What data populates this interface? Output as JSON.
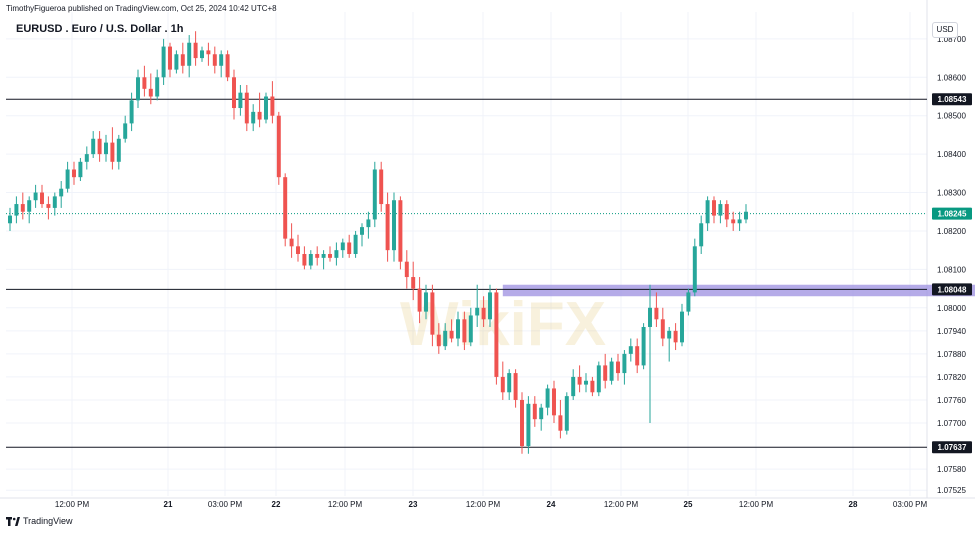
{
  "header": {
    "published_by": "TimothyFigueroa published on TradingView.com, Oct 25, 2024 10:42 UTC+8",
    "title": "EURUSD . Euro / U.S. Dollar . 1h",
    "currency": "USD"
  },
  "footer": {
    "brand": "TradingView"
  },
  "watermark": {
    "text": "WikiFX"
  },
  "colors": {
    "up": "#26a69a",
    "down": "#ef5350",
    "grid": "#f0f3fa",
    "zone": "#9c8fe0",
    "current": "#089981"
  },
  "chart_data": {
    "type": "candlestick",
    "title": "EURUSD . Euro / U.S. Dollar . 1h",
    "ylim": [
      1.0751,
      1.0877
    ],
    "y_ticks": [
      "1.08700",
      "1.08600",
      "1.08500",
      "1.08400",
      "1.08300",
      "1.08200",
      "1.08100",
      "1.08000",
      "1.07940",
      "1.07880",
      "1.07820",
      "1.07760",
      "1.07700",
      "1.07580",
      "1.07525"
    ],
    "x_ticks": [
      "12:00 PM",
      "21",
      "03:00 PM",
      "22",
      "12:00 PM",
      "23",
      "12:00 PM",
      "24",
      "12:00 PM",
      "25",
      "12:00 PM",
      "28",
      "03:00 PM"
    ],
    "x_ticks_bold": [
      "21",
      "22",
      "23",
      "24",
      "25",
      "28"
    ],
    "horizontal_levels": [
      {
        "label": "1.08543",
        "value": 1.08543
      },
      {
        "label": "1.08048",
        "value": 1.08048
      },
      {
        "label": "1.07637",
        "value": 1.07637
      }
    ],
    "current_price": {
      "label": "1.08245",
      "value": 1.08245
    },
    "zone": {
      "low": 1.0803,
      "high": 1.0806,
      "from_index": 77,
      "to_index": 150
    },
    "candles": [
      [
        1.0822,
        1.0826,
        1.082,
        1.0824
      ],
      [
        1.0824,
        1.0829,
        1.0822,
        1.0827
      ],
      [
        1.0827,
        1.083,
        1.0823,
        1.0825
      ],
      [
        1.0825,
        1.0829,
        1.0822,
        1.0828
      ],
      [
        1.0828,
        1.0832,
        1.0826,
        1.083
      ],
      [
        1.083,
        1.0832,
        1.0826,
        1.0827
      ],
      [
        1.0827,
        1.0829,
        1.0823,
        1.0826
      ],
      [
        1.0826,
        1.083,
        1.0824,
        1.0829
      ],
      [
        1.0829,
        1.0833,
        1.0826,
        1.0831
      ],
      [
        1.0831,
        1.0838,
        1.083,
        1.0836
      ],
      [
        1.0836,
        1.0838,
        1.0832,
        1.0834
      ],
      [
        1.0834,
        1.0839,
        1.0833,
        1.0838
      ],
      [
        1.0838,
        1.0842,
        1.0836,
        1.084
      ],
      [
        1.084,
        1.0846,
        1.0839,
        1.0844
      ],
      [
        1.0844,
        1.0846,
        1.0838,
        1.084
      ],
      [
        1.084,
        1.0845,
        1.0838,
        1.0843
      ],
      [
        1.0843,
        1.0847,
        1.0836,
        1.0838
      ],
      [
        1.0838,
        1.0845,
        1.0836,
        1.0844
      ],
      [
        1.0844,
        1.085,
        1.0843,
        1.0848
      ],
      [
        1.0848,
        1.0856,
        1.0846,
        1.0854
      ],
      [
        1.0854,
        1.0862,
        1.0852,
        1.086
      ],
      [
        1.086,
        1.0863,
        1.0855,
        1.0857
      ],
      [
        1.0857,
        1.0861,
        1.0853,
        1.0855
      ],
      [
        1.0855,
        1.0862,
        1.0854,
        1.086
      ],
      [
        1.086,
        1.087,
        1.0858,
        1.0868
      ],
      [
        1.0868,
        1.0869,
        1.086,
        1.0862
      ],
      [
        1.0862,
        1.0867,
        1.0861,
        1.0866
      ],
      [
        1.0866,
        1.0869,
        1.0861,
        1.0863
      ],
      [
        1.0863,
        1.0871,
        1.086,
        1.0869
      ],
      [
        1.0869,
        1.0872,
        1.0863,
        1.0865
      ],
      [
        1.0865,
        1.0868,
        1.0864,
        1.0867
      ],
      [
        1.0867,
        1.0869,
        1.0863,
        1.0866
      ],
      [
        1.0866,
        1.0868,
        1.0861,
        1.0863
      ],
      [
        1.0863,
        1.0867,
        1.086,
        1.0866
      ],
      [
        1.0866,
        1.0867,
        1.0859,
        1.086
      ],
      [
        1.086,
        1.0862,
        1.0849,
        1.0852
      ],
      [
        1.0852,
        1.0858,
        1.085,
        1.0856
      ],
      [
        1.0856,
        1.0858,
        1.0846,
        1.0848
      ],
      [
        1.0848,
        1.0853,
        1.0846,
        1.0851
      ],
      [
        1.0851,
        1.0856,
        1.0847,
        1.0849
      ],
      [
        1.0849,
        1.0856,
        1.0848,
        1.0855
      ],
      [
        1.0855,
        1.0859,
        1.0848,
        1.085
      ],
      [
        1.085,
        1.0851,
        1.0832,
        1.0834
      ],
      [
        1.0834,
        1.0835,
        1.0816,
        1.0818
      ],
      [
        1.0818,
        1.0822,
        1.0813,
        1.0816
      ],
      [
        1.0816,
        1.0819,
        1.0812,
        1.0814
      ],
      [
        1.0814,
        1.0816,
        1.081,
        1.0811
      ],
      [
        1.0811,
        1.0815,
        1.081,
        1.0814
      ],
      [
        1.0814,
        1.0816,
        1.0811,
        1.0813
      ],
      [
        1.0813,
        1.0815,
        1.081,
        1.0814
      ],
      [
        1.0814,
        1.0816,
        1.0812,
        1.0813
      ],
      [
        1.0813,
        1.0817,
        1.0811,
        1.0815
      ],
      [
        1.0815,
        1.0818,
        1.0813,
        1.0817
      ],
      [
        1.0817,
        1.0819,
        1.0813,
        1.0814
      ],
      [
        1.0814,
        1.082,
        1.0813,
        1.0819
      ],
      [
        1.0819,
        1.0822,
        1.0816,
        1.0821
      ],
      [
        1.0821,
        1.0825,
        1.0818,
        1.0823
      ],
      [
        1.0823,
        1.0838,
        1.0821,
        1.0836
      ],
      [
        1.0836,
        1.0838,
        1.0825,
        1.0827
      ],
      [
        1.0827,
        1.083,
        1.0812,
        1.0815
      ],
      [
        1.0815,
        1.083,
        1.0812,
        1.0828
      ],
      [
        1.0828,
        1.0829,
        1.081,
        1.0812
      ],
      [
        1.0812,
        1.0815,
        1.0805,
        1.0808
      ],
      [
        1.0808,
        1.0812,
        1.0802,
        1.0805
      ],
      [
        1.0805,
        1.0808,
        1.0796,
        1.0799
      ],
      [
        1.0799,
        1.0806,
        1.0797,
        1.0804
      ],
      [
        1.0804,
        1.0806,
        1.079,
        1.0793
      ],
      [
        1.0793,
        1.0796,
        1.0788,
        1.079
      ],
      [
        1.079,
        1.0796,
        1.0789,
        1.0794
      ],
      [
        1.0794,
        1.0797,
        1.0791,
        1.0792
      ],
      [
        1.0792,
        1.0799,
        1.079,
        1.0797
      ],
      [
        1.0797,
        1.0799,
        1.0789,
        1.0791
      ],
      [
        1.0791,
        1.08,
        1.079,
        1.0798
      ],
      [
        1.0798,
        1.0806,
        1.0795,
        1.08
      ],
      [
        1.08,
        1.0803,
        1.0795,
        1.0797
      ],
      [
        1.0797,
        1.0806,
        1.0795,
        1.0804
      ],
      [
        1.0804,
        1.0805,
        1.078,
        1.0782
      ],
      [
        1.0782,
        1.0786,
        1.0776,
        1.0778
      ],
      [
        1.0778,
        1.0784,
        1.0776,
        1.0783
      ],
      [
        1.0783,
        1.0784,
        1.0774,
        1.0776
      ],
      [
        1.0776,
        1.0778,
        1.0762,
        1.0764
      ],
      [
        1.0764,
        1.0777,
        1.0762,
        1.0775
      ],
      [
        1.0775,
        1.0777,
        1.0769,
        1.0771
      ],
      [
        1.0771,
        1.0775,
        1.0768,
        1.0774
      ],
      [
        1.0774,
        1.078,
        1.0772,
        1.0779
      ],
      [
        1.0779,
        1.0781,
        1.077,
        1.0772
      ],
      [
        1.0772,
        1.0776,
        1.0766,
        1.0768
      ],
      [
        1.0768,
        1.0778,
        1.0767,
        1.0777
      ],
      [
        1.0777,
        1.0784,
        1.0776,
        1.0782
      ],
      [
        1.0782,
        1.0785,
        1.0778,
        1.078
      ],
      [
        1.078,
        1.0783,
        1.0778,
        1.0781
      ],
      [
        1.0781,
        1.0782,
        1.0777,
        1.0778
      ],
      [
        1.0778,
        1.0786,
        1.0777,
        1.0785
      ],
      [
        1.0785,
        1.0788,
        1.0779,
        1.0781
      ],
      [
        1.0781,
        1.0787,
        1.078,
        1.0786
      ],
      [
        1.0786,
        1.0788,
        1.0781,
        1.0783
      ],
      [
        1.0783,
        1.0789,
        1.078,
        1.0788
      ],
      [
        1.0788,
        1.0792,
        1.0786,
        1.079
      ],
      [
        1.079,
        1.0792,
        1.0783,
        1.0785
      ],
      [
        1.0785,
        1.0796,
        1.0784,
        1.0795
      ],
      [
        1.0795,
        1.0806,
        1.077,
        1.08
      ],
      [
        1.08,
        1.0804,
        1.0795,
        1.0797
      ],
      [
        1.0797,
        1.08,
        1.079,
        1.0792
      ],
      [
        1.0792,
        1.0795,
        1.0786,
        1.0794
      ],
      [
        1.0794,
        1.0796,
        1.0789,
        1.0791
      ],
      [
        1.0791,
        1.0801,
        1.079,
        1.0799
      ],
      [
        1.0799,
        1.0805,
        1.0798,
        1.0804
      ],
      [
        1.0804,
        1.0818,
        1.0803,
        1.0816
      ],
      [
        1.0816,
        1.0824,
        1.0814,
        1.0822
      ],
      [
        1.0822,
        1.0829,
        1.082,
        1.0828
      ],
      [
        1.0828,
        1.0829,
        1.0822,
        1.0824
      ],
      [
        1.0824,
        1.0828,
        1.0822,
        1.0827
      ],
      [
        1.0827,
        1.0828,
        1.0821,
        1.0823
      ],
      [
        1.0823,
        1.0825,
        1.082,
        1.0822
      ],
      [
        1.0822,
        1.0825,
        1.082,
        1.0823
      ],
      [
        1.0823,
        1.0827,
        1.0822,
        1.0825
      ]
    ]
  }
}
